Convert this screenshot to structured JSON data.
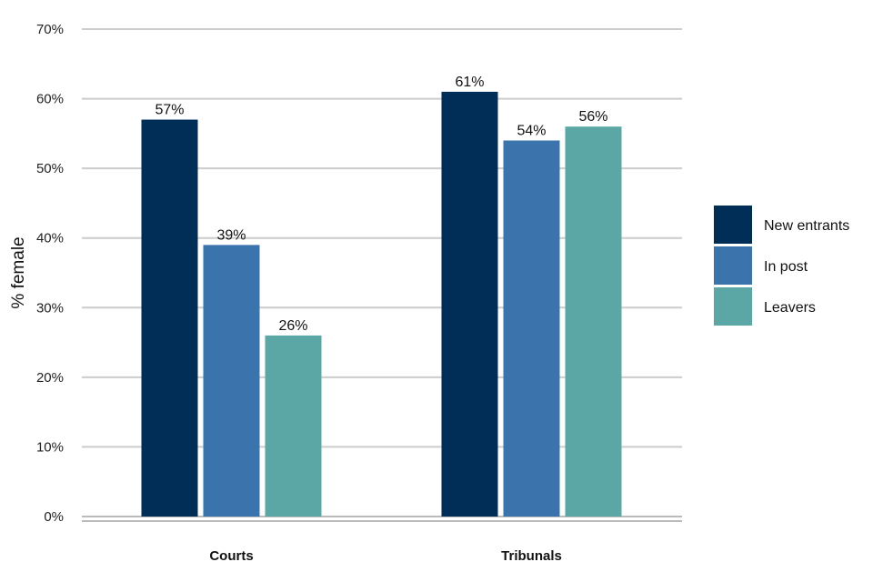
{
  "chart_data": {
    "type": "bar",
    "categories": [
      "Courts",
      "Tribunals"
    ],
    "series": [
      {
        "name": "New entrants",
        "values": [
          57,
          61
        ],
        "labels": [
          "57%",
          "61%"
        ],
        "color": "#002e56"
      },
      {
        "name": "In post",
        "values": [
          39,
          54
        ],
        "labels": [
          "39%",
          "54%"
        ],
        "color": "#3b74ad"
      },
      {
        "name": "Leavers",
        "values": [
          26,
          56
        ],
        "labels": [
          "26%",
          "56%"
        ],
        "color": "#5aa7a5"
      }
    ],
    "ylabel": "% female",
    "ylim": [
      0,
      70
    ],
    "yticks": [
      0,
      10,
      20,
      30,
      40,
      50,
      60,
      70
    ],
    "ytick_labels": [
      "0%",
      "10%",
      "20%",
      "30%",
      "40%",
      "50%",
      "60%",
      "70%"
    ],
    "grid": true,
    "legend_position": "right"
  }
}
